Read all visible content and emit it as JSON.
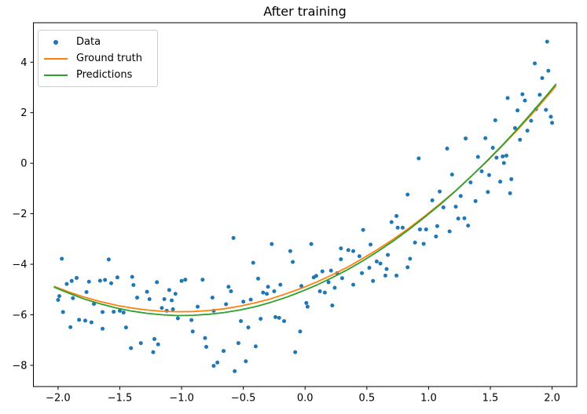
{
  "chart_data": {
    "type": "scatter",
    "title": "After training",
    "xlabel": "",
    "ylabel": "",
    "xlim": [
      -2.2,
      2.2
    ],
    "ylim": [
      -8.84,
      5.56
    ],
    "grid": false,
    "xticks": [
      -2.0,
      -1.5,
      -1.0,
      -0.5,
      0.0,
      0.5,
      1.0,
      1.5,
      2.0
    ],
    "xtick_labels": [
      "−2.0",
      "−1.5",
      "−1.0",
      "−0.5",
      "0.0",
      "0.5",
      "1.0",
      "1.5",
      "2.0"
    ],
    "yticks": [
      4,
      2,
      0,
      -2,
      -4,
      -6,
      -8
    ],
    "ytick_labels": [
      "4",
      "2",
      "0",
      "−2",
      "−4",
      "−6",
      "−8"
    ],
    "legend": {
      "position": "upper left",
      "entries": [
        {
          "label": "Data",
          "marker": "point",
          "color": "#1f77b4"
        },
        {
          "label": "Ground truth",
          "marker": "line",
          "color": "#ff7f0e"
        },
        {
          "label": "Predictions",
          "marker": "line",
          "color": "#2ca02c"
        }
      ]
    },
    "series": [
      {
        "name": "Data",
        "type": "scatter",
        "color": "#1f77b4",
        "marker_size": 2.5,
        "points": [
          [
            -2.0,
            -5.41
          ],
          [
            -1.99,
            -5.26
          ],
          [
            -1.97,
            -3.78
          ],
          [
            -1.96,
            -5.89
          ],
          [
            -1.93,
            -4.78
          ],
          [
            -1.9,
            -6.49
          ],
          [
            -1.89,
            -4.66
          ],
          [
            -1.88,
            -5.34
          ],
          [
            -1.85,
            -4.54
          ],
          [
            -1.83,
            -6.2
          ],
          [
            -1.78,
            -6.23
          ],
          [
            -1.77,
            -5.1
          ],
          [
            -1.75,
            -4.69
          ],
          [
            -1.73,
            -6.3
          ],
          [
            -1.71,
            -5.57
          ],
          [
            -1.66,
            -4.65
          ],
          [
            -1.64,
            -5.89
          ],
          [
            -1.64,
            -6.55
          ],
          [
            -1.62,
            -4.62
          ],
          [
            -1.59,
            -3.81
          ],
          [
            -1.57,
            -4.75
          ],
          [
            -1.55,
            -5.88
          ],
          [
            -1.52,
            -4.52
          ],
          [
            -1.5,
            -5.84
          ],
          [
            -1.47,
            -5.91
          ],
          [
            -1.45,
            -6.5
          ],
          [
            -1.41,
            -7.32
          ],
          [
            -1.4,
            -4.5
          ],
          [
            -1.39,
            -4.82
          ],
          [
            -1.36,
            -5.32
          ],
          [
            -1.33,
            -7.12
          ],
          [
            -1.28,
            -5.09
          ],
          [
            -1.26,
            -5.38
          ],
          [
            -1.23,
            -7.48
          ],
          [
            -1.22,
            -6.96
          ],
          [
            -1.2,
            -4.71
          ],
          [
            -1.19,
            -7.17
          ],
          [
            -1.16,
            -5.73
          ],
          [
            -1.14,
            -5.38
          ],
          [
            -1.12,
            -5.84
          ],
          [
            -1.1,
            -5.02
          ],
          [
            -1.08,
            -5.43
          ],
          [
            -1.07,
            -5.78
          ],
          [
            -1.05,
            -5.17
          ],
          [
            -1.03,
            -6.14
          ],
          [
            -1.0,
            -4.66
          ],
          [
            -0.97,
            -4.61
          ],
          [
            -0.92,
            -6.21
          ],
          [
            -0.91,
            -6.66
          ],
          [
            -0.87,
            -5.68
          ],
          [
            -0.83,
            -4.61
          ],
          [
            -0.81,
            -6.92
          ],
          [
            -0.8,
            -7.27
          ],
          [
            -0.75,
            -5.32
          ],
          [
            -0.74,
            -5.84
          ],
          [
            -0.74,
            -8.02
          ],
          [
            -0.71,
            -7.89
          ],
          [
            -0.66,
            -7.43
          ],
          [
            -0.64,
            -5.58
          ],
          [
            -0.62,
            -4.89
          ],
          [
            -0.6,
            -5.07
          ],
          [
            -0.58,
            -2.96
          ],
          [
            -0.57,
            -8.23
          ],
          [
            -0.54,
            -7.12
          ],
          [
            -0.52,
            -6.25
          ],
          [
            -0.5,
            -5.48
          ],
          [
            -0.48,
            -7.84
          ],
          [
            -0.46,
            -6.5
          ],
          [
            -0.44,
            -5.4
          ],
          [
            -0.42,
            -3.94
          ],
          [
            -0.4,
            -7.25
          ],
          [
            -0.38,
            -4.57
          ],
          [
            -0.36,
            -6.16
          ],
          [
            -0.34,
            -5.12
          ],
          [
            -0.31,
            -5.17
          ],
          [
            -0.3,
            -4.89
          ],
          [
            -0.27,
            -3.2
          ],
          [
            -0.25,
            -5.07
          ],
          [
            -0.24,
            -6.09
          ],
          [
            -0.21,
            -6.12
          ],
          [
            -0.2,
            -4.81
          ],
          [
            -0.17,
            -6.25
          ],
          [
            -0.12,
            -3.48
          ],
          [
            -0.1,
            -3.91
          ],
          [
            -0.08,
            -7.48
          ],
          [
            -0.04,
            -6.66
          ],
          [
            -0.03,
            -4.86
          ],
          [
            0.01,
            -5.53
          ],
          [
            0.02,
            -5.68
          ],
          [
            0.05,
            -3.2
          ],
          [
            0.07,
            -4.52
          ],
          [
            0.09,
            -4.46
          ],
          [
            0.12,
            -5.07
          ],
          [
            0.14,
            -4.28
          ],
          [
            0.16,
            -5.12
          ],
          [
            0.19,
            -4.71
          ],
          [
            0.21,
            -4.25
          ],
          [
            0.22,
            -5.63
          ],
          [
            0.24,
            -4.93
          ],
          [
            0.26,
            -4.35
          ],
          [
            0.29,
            -3.37
          ],
          [
            0.29,
            -3.8
          ],
          [
            0.3,
            -4.55
          ],
          [
            0.35,
            -3.44
          ],
          [
            0.39,
            -3.48
          ],
          [
            0.39,
            -4.81
          ],
          [
            0.44,
            -3.68
          ],
          [
            0.46,
            -4.35
          ],
          [
            0.47,
            -2.64
          ],
          [
            0.52,
            -4.14
          ],
          [
            0.53,
            -3.22
          ],
          [
            0.55,
            -4.66
          ],
          [
            0.58,
            -3.89
          ],
          [
            0.61,
            -3.97
          ],
          [
            0.65,
            -4.45
          ],
          [
            0.66,
            -4.19
          ],
          [
            0.67,
            -3.63
          ],
          [
            0.7,
            -2.33
          ],
          [
            0.74,
            -2.09
          ],
          [
            0.74,
            -4.45
          ],
          [
            0.75,
            -2.55
          ],
          [
            0.79,
            -2.55
          ],
          [
            0.83,
            -4.12
          ],
          [
            0.83,
            -1.24
          ],
          [
            0.85,
            -3.78
          ],
          [
            0.89,
            -3.14
          ],
          [
            0.92,
            0.19
          ],
          [
            0.93,
            -2.62
          ],
          [
            0.96,
            -3.19
          ],
          [
            0.98,
            -2.62
          ],
          [
            1.03,
            -1.47
          ],
          [
            1.06,
            -2.9
          ],
          [
            1.07,
            -2.49
          ],
          [
            1.09,
            -1.12
          ],
          [
            1.12,
            -1.75
          ],
          [
            1.15,
            0.58
          ],
          [
            1.17,
            -2.7
          ],
          [
            1.19,
            -0.45
          ],
          [
            1.22,
            -1.72
          ],
          [
            1.24,
            -2.19
          ],
          [
            1.26,
            -1.3
          ],
          [
            1.29,
            -2.18
          ],
          [
            1.3,
            0.98
          ],
          [
            1.32,
            -2.47
          ],
          [
            1.34,
            -0.76
          ],
          [
            1.38,
            -1.5
          ],
          [
            1.4,
            0.25
          ],
          [
            1.43,
            -0.32
          ],
          [
            1.46,
            0.99
          ],
          [
            1.48,
            -1.14
          ],
          [
            1.49,
            -0.47
          ],
          [
            1.52,
            0.61
          ],
          [
            1.54,
            1.7
          ],
          [
            1.55,
            0.22
          ],
          [
            1.58,
            -0.73
          ],
          [
            1.6,
            0.27
          ],
          [
            1.61,
            0.01
          ],
          [
            1.63,
            0.3
          ],
          [
            1.64,
            2.58
          ],
          [
            1.66,
            -1.19
          ],
          [
            1.67,
            -0.63
          ],
          [
            1.7,
            1.39
          ],
          [
            1.72,
            2.09
          ],
          [
            1.74,
            0.93
          ],
          [
            1.76,
            2.73
          ],
          [
            1.78,
            2.48
          ],
          [
            1.8,
            1.29
          ],
          [
            1.83,
            1.68
          ],
          [
            1.86,
            3.95
          ],
          [
            1.87,
            2.14
          ],
          [
            1.9,
            2.71
          ],
          [
            1.92,
            3.37
          ],
          [
            1.95,
            2.11
          ],
          [
            1.96,
            4.81
          ],
          [
            1.97,
            3.66
          ],
          [
            1.99,
            1.84
          ],
          [
            2.0,
            1.6
          ]
        ]
      },
      {
        "name": "Ground truth",
        "type": "line",
        "color": "#ff7f0e",
        "line_width": 1.8,
        "points": [
          [
            -2.03,
            -4.88
          ],
          [
            -1.905,
            -5.11
          ],
          [
            -1.78,
            -5.31
          ],
          [
            -1.655,
            -5.48
          ],
          [
            -1.53,
            -5.62
          ],
          [
            -1.405,
            -5.73
          ],
          [
            -1.28,
            -5.81
          ],
          [
            -1.155,
            -5.86
          ],
          [
            -1.03,
            -5.88
          ],
          [
            -0.905,
            -5.87
          ],
          [
            -0.78,
            -5.83
          ],
          [
            -0.655,
            -5.76
          ],
          [
            -0.53,
            -5.66
          ],
          [
            -0.405,
            -5.53
          ],
          [
            -0.28,
            -5.37
          ],
          [
            -0.155,
            -5.17
          ],
          [
            -0.03,
            -4.95
          ],
          [
            0.095,
            -4.7
          ],
          [
            0.22,
            -4.42
          ],
          [
            0.345,
            -4.11
          ],
          [
            0.47,
            -3.76
          ],
          [
            0.595,
            -3.39
          ],
          [
            0.72,
            -2.99
          ],
          [
            0.845,
            -2.56
          ],
          [
            0.97,
            -2.09
          ],
          [
            1.095,
            -1.6
          ],
          [
            1.22,
            -1.08
          ],
          [
            1.345,
            -0.52
          ],
          [
            1.47,
            0.06
          ],
          [
            1.595,
            0.68
          ],
          [
            1.72,
            1.32
          ],
          [
            1.845,
            1.99
          ],
          [
            1.97,
            2.7
          ],
          [
            2.03,
            3.05
          ]
        ]
      },
      {
        "name": "Predictions",
        "type": "line",
        "color": "#2ca02c",
        "line_width": 1.8,
        "points": [
          [
            -2.03,
            -4.91
          ],
          [
            -1.905,
            -5.16
          ],
          [
            -1.78,
            -5.39
          ],
          [
            -1.655,
            -5.57
          ],
          [
            -1.53,
            -5.73
          ],
          [
            -1.405,
            -5.85
          ],
          [
            -1.28,
            -5.94
          ],
          [
            -1.155,
            -6.0
          ],
          [
            -1.03,
            -6.03
          ],
          [
            -0.905,
            -6.02
          ],
          [
            -0.78,
            -5.98
          ],
          [
            -0.655,
            -5.91
          ],
          [
            -0.53,
            -5.81
          ],
          [
            -0.405,
            -5.68
          ],
          [
            -0.28,
            -5.51
          ],
          [
            -0.155,
            -5.31
          ],
          [
            -0.03,
            -5.08
          ],
          [
            0.095,
            -4.82
          ],
          [
            0.22,
            -4.53
          ],
          [
            0.345,
            -4.21
          ],
          [
            0.47,
            -3.86
          ],
          [
            0.595,
            -3.47
          ],
          [
            0.72,
            -3.06
          ],
          [
            0.845,
            -2.61
          ],
          [
            0.97,
            -2.13
          ],
          [
            1.095,
            -1.63
          ],
          [
            1.22,
            -1.09
          ],
          [
            1.345,
            -0.52
          ],
          [
            1.47,
            0.08
          ],
          [
            1.595,
            0.7
          ],
          [
            1.72,
            1.36
          ],
          [
            1.845,
            2.05
          ],
          [
            1.97,
            2.77
          ],
          [
            2.03,
            3.12
          ]
        ]
      }
    ]
  }
}
